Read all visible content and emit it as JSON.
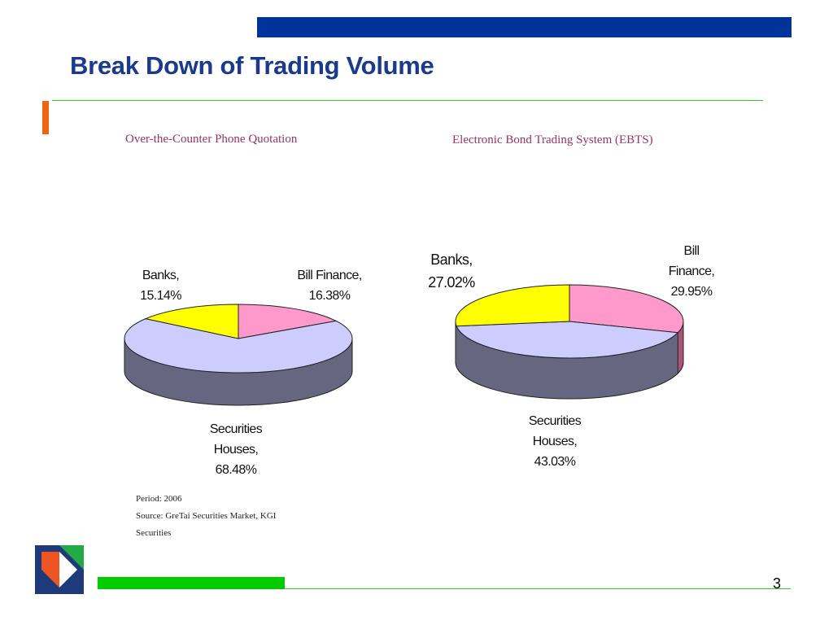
{
  "slide": {
    "title": "Break Down of Trading Volume",
    "page_number": "3",
    "notes": {
      "period": "Period: 2006",
      "source_line1": "Source: GreTai Securities Market, KGI",
      "source_line2": "Securities"
    }
  },
  "colors": {
    "bill_finance": "#ff99cc",
    "securities_houses": "#ccccff",
    "banks": "#ffff00",
    "side_wall": "#666680"
  },
  "chart_data": [
    {
      "type": "pie",
      "title": "Over-the-Counter Phone Quotation",
      "slices": [
        {
          "name": "Bill Finance",
          "value": 16.38,
          "label_line1": "Bill Finance,",
          "label_line2": "16.38%"
        },
        {
          "name": "Securities Houses",
          "value": 68.48,
          "label_line1": "Securities",
          "label_line2": "Houses,",
          "label_line3": "68.48%"
        },
        {
          "name": "Banks",
          "value": 15.14,
          "label_line1": "Banks,",
          "label_line2": "15.14%"
        }
      ]
    },
    {
      "type": "pie",
      "title": "Electronic Bond Trading System (EBTS)",
      "slices": [
        {
          "name": "Bill Finance",
          "value": 29.95,
          "label_line1": "Bill",
          "label_line2": "Finance,",
          "label_line3": "29.95%"
        },
        {
          "name": "Securities Houses",
          "value": 43.03,
          "label_line1": "Securities",
          "label_line2": "Houses,",
          "label_line3": "43.03%"
        },
        {
          "name": "Banks",
          "value": 27.02,
          "label_line1": "Banks,",
          "label_line2": "27.02%"
        }
      ]
    }
  ]
}
